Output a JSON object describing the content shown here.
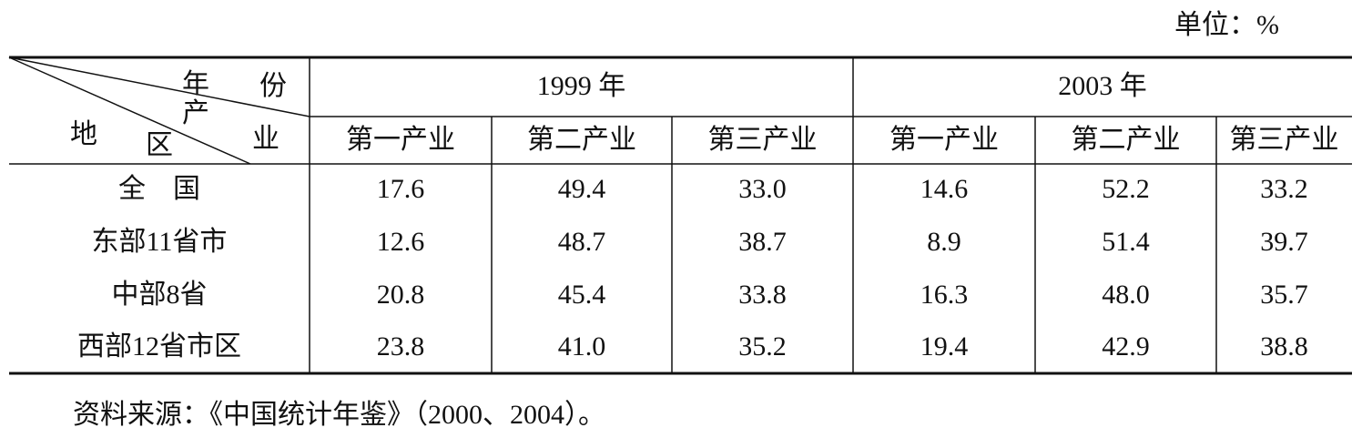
{
  "unit": "单位：%",
  "table": {
    "diagonal_header": {
      "top": [
        "年",
        "份"
      ],
      "middle": [
        "产",
        "业"
      ],
      "bottom": [
        "地",
        "区"
      ]
    },
    "groups": [
      "1999 年",
      "2003 年"
    ],
    "columns": [
      "第一产业",
      "第二产业",
      "第三产业",
      "第一产业",
      "第二产业",
      "第三产业"
    ],
    "rows": [
      [
        "全　国",
        "17.6",
        "49.4",
        "33.0",
        "14.6",
        "52.2",
        "33.2"
      ],
      [
        "东部11省市",
        "12.6",
        "48.7",
        "38.7",
        "8.9",
        "51.4",
        "39.7"
      ],
      [
        "中部8省",
        "20.8",
        "45.4",
        "33.8",
        "16.3",
        "48.0",
        "35.7"
      ],
      [
        "西部12省市区",
        "23.8",
        "41.0",
        "35.2",
        "19.4",
        "42.9",
        "38.8"
      ]
    ]
  },
  "source": "资料来源：《中国统计年鉴》（2000、2004）。"
}
